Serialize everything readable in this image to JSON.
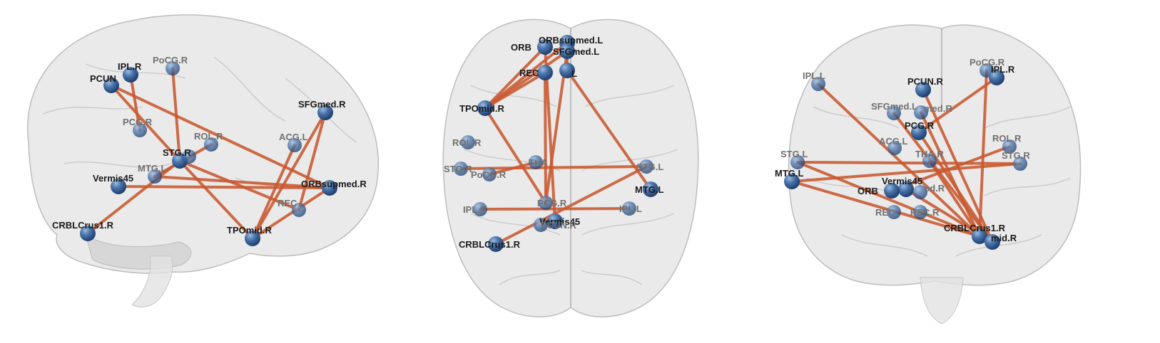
{
  "views": [
    {
      "name": "sagittal",
      "nodes": [
        {
          "id": "IPL.R",
          "label": "IPL.R",
          "depth": "front"
        },
        {
          "id": "PCUN",
          "label": "PCUN",
          "depth": "front"
        },
        {
          "id": "PoCG.R",
          "label": "PoCG.R",
          "depth": "back"
        },
        {
          "id": "PCG.R",
          "label": "PCG.R",
          "depth": "back"
        },
        {
          "id": "ROL.R",
          "label": "ROL.R",
          "depth": "back"
        },
        {
          "id": "STG.R",
          "label": "STG.R",
          "depth": "front"
        },
        {
          "id": "THA",
          "label": "",
          "depth": "back"
        },
        {
          "id": "MTG.L",
          "label": "MTG.L",
          "depth": "back"
        },
        {
          "id": "Vermis45",
          "label": "Vermis45",
          "depth": "front"
        },
        {
          "id": "CRBLCrus1.R",
          "label": "CRBLCrus1.R",
          "depth": "front"
        },
        {
          "id": "TPOmid.R",
          "label": "TPOmid.R",
          "depth": "front"
        },
        {
          "id": "SFGmed.R",
          "label": "SFGmed.R",
          "depth": "front"
        },
        {
          "id": "ACG.L",
          "label": "ACG.L",
          "depth": "back"
        },
        {
          "id": "ORBsupmed.R",
          "label": "ORBsupmed.R",
          "depth": "front"
        },
        {
          "id": "REC",
          "label": "REC",
          "depth": "back"
        }
      ],
      "edges": [
        [
          "PCUN",
          "ORBsupmed.R"
        ],
        [
          "PCUN",
          "STG.R"
        ],
        [
          "IPL.R",
          "PCG.R"
        ],
        [
          "PoCG.R",
          "STG.R"
        ],
        [
          "STG.R",
          "TPOmid.R"
        ],
        [
          "Vermis45",
          "ORBsupmed.R"
        ],
        [
          "MTG.L",
          "ORBsupmed.R"
        ],
        [
          "CRBLCrus1.R",
          "STG.R"
        ],
        [
          "TPOmid.R",
          "SFGmed.R"
        ],
        [
          "SFGmed.R",
          "REC"
        ],
        [
          "ACG.L",
          "TPOmid.R"
        ],
        [
          "REC",
          "STG.R"
        ],
        [
          "ORBsupmed.R",
          "TPOmid.R"
        ],
        [
          "ROL.R",
          "MTG.L"
        ]
      ]
    },
    {
      "name": "axial",
      "nodes": [
        {
          "id": "ORBsupmed.L",
          "label": "ORBsupmed.L",
          "depth": "front"
        },
        {
          "id": "ORB",
          "label": "ORB",
          "depth": "front"
        },
        {
          "id": "SFGmed.L",
          "label": "SFGmed.L",
          "depth": "front"
        },
        {
          "id": "REC",
          "label": "REC",
          "depth": "front"
        },
        {
          "id": "REC2",
          "label": "L",
          "depth": "front"
        },
        {
          "id": "TPOmid.R",
          "label": "TPOmid.R",
          "depth": "front"
        },
        {
          "id": "ROL.R",
          "label": "ROL.R",
          "depth": "back"
        },
        {
          "id": "STG.R",
          "label": "STG.R",
          "depth": "back"
        },
        {
          "id": "PoCG.R",
          "label": "PoCG.R",
          "depth": "back"
        },
        {
          "id": "THA",
          "label": "THA",
          "depth": "back"
        },
        {
          "id": "STG.L",
          "label": "STG.L",
          "depth": "back"
        },
        {
          "id": "MTG.L",
          "label": "MTG.L",
          "depth": "front"
        },
        {
          "id": "IPL.R",
          "label": "IPL.R",
          "depth": "back"
        },
        {
          "id": "PCG.R",
          "label": "PCG.R",
          "depth": "back"
        },
        {
          "id": "IPL.L",
          "label": "IPL.L",
          "depth": "back"
        },
        {
          "id": "Vermis45",
          "label": "Vermis45",
          "depth": "front"
        },
        {
          "id": "PCUN.R",
          "label": "PCUN.R",
          "depth": "back"
        },
        {
          "id": "CRBLCrus1.R",
          "label": "CRBLCrus1.R",
          "depth": "front"
        }
      ],
      "edges": [
        [
          "TPOmid.R",
          "ORB"
        ],
        [
          "TPOmid.R",
          "SFGmed.L"
        ],
        [
          "TPOmid.R",
          "ORBsupmed.L"
        ],
        [
          "TPOmid.R",
          "REC"
        ],
        [
          "REC",
          "PCG.R"
        ],
        [
          "REC2",
          "ORBsupmed.L"
        ],
        [
          "REC2",
          "MTG.L"
        ],
        [
          "SFGmed.L",
          "PCG.R"
        ],
        [
          "STG.R",
          "STG.L"
        ],
        [
          "PoCG.R",
          "THA"
        ],
        [
          "IPL.R",
          "IPL.L"
        ],
        [
          "CRBLCrus1.R",
          "STG.L"
        ],
        [
          "TPOmid.R",
          "PCG.R"
        ],
        [
          "ORB",
          "Vermis45"
        ]
      ]
    },
    {
      "name": "coronal",
      "nodes": [
        {
          "id": "IPL.L",
          "label": "IPL.L",
          "depth": "back"
        },
        {
          "id": "PCUN.R",
          "label": "PCUN.R",
          "depth": "front"
        },
        {
          "id": "PoCG.R",
          "label": "PoCG.R",
          "depth": "back"
        },
        {
          "id": "IPL.R",
          "label": "IPL.R",
          "depth": "front"
        },
        {
          "id": "SFGmed.L",
          "label": "SFGmed.L",
          "depth": "back"
        },
        {
          "id": "SFGmed.R",
          "label": "med.R",
          "depth": "back"
        },
        {
          "id": "PCG.R",
          "label": "PCG.R",
          "depth": "front"
        },
        {
          "id": "ACG.L",
          "label": "ACG.L",
          "depth": "back"
        },
        {
          "id": "ROL.R",
          "label": "ROL.R",
          "depth": "back"
        },
        {
          "id": "STG.L",
          "label": "STG.L",
          "depth": "back"
        },
        {
          "id": "THA.R",
          "label": "THA.R",
          "depth": "back"
        },
        {
          "id": "STG.R",
          "label": "STG.R",
          "depth": "back"
        },
        {
          "id": "MTG.L",
          "label": "MTG.L",
          "depth": "front"
        },
        {
          "id": "Vermis45",
          "label": "Vermis45",
          "depth": "front"
        },
        {
          "id": "ORB",
          "label": "ORB",
          "depth": "front"
        },
        {
          "id": "ORBmed",
          "label": "ed.R",
          "depth": "back"
        },
        {
          "id": "REC.L",
          "label": "REC",
          "depth": "back"
        },
        {
          "id": "REC.R",
          "label": "REC.R",
          "depth": "back"
        },
        {
          "id": "CRBLCrus1.R",
          "label": "CRBLCrus1.R",
          "depth": "front"
        },
        {
          "id": "TPOmid.R",
          "label": "mid.R",
          "depth": "front"
        }
      ],
      "edges": [
        [
          "IPL.L",
          "CRBLCrus1.R"
        ],
        [
          "STG.L",
          "CRBLCrus1.R"
        ],
        [
          "MTG.L",
          "CRBLCrus1.R"
        ],
        [
          "STG.L",
          "STG.R"
        ],
        [
          "PCUN.R",
          "TPOmid.R"
        ],
        [
          "IPL.R",
          "PCG.R"
        ],
        [
          "PoCG.R",
          "CRBLCrus1.R"
        ],
        [
          "SFGmed.L",
          "TPOmid.R"
        ],
        [
          "ROL.R",
          "ORB"
        ],
        [
          "PCG.R",
          "TPOmid.R"
        ],
        [
          "THA.R",
          "CRBLCrus1.R"
        ],
        [
          "Vermis45",
          "TPOmid.R"
        ],
        [
          "MTG.L",
          "STG.R"
        ],
        [
          "SFGmed.R",
          "CRBLCrus1.R"
        ]
      ]
    }
  ],
  "colors": {
    "edge": "#c8582f",
    "node": "#3f6aa0",
    "node_hi": "#8fb0d8",
    "brain": "#d9d9d9"
  }
}
